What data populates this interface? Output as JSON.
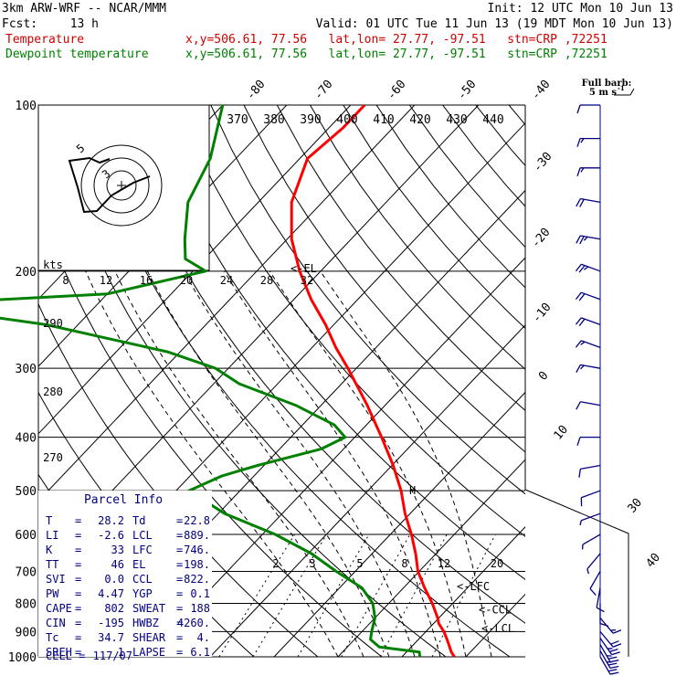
{
  "header": {
    "model": "3km ARW-WRF -- NCAR/MMM",
    "init": "Init: 12 UTC Mon 10 Jun 13",
    "fcst_label": "Fcst:",
    "fcst_value": "13 h",
    "valid": "Valid: 01 UTC Tue 11 Jun 13 (19 MDT Mon 10 Jun 13)",
    "rows": [
      {
        "name": "Temperature",
        "loc": "x,y=506.61, 77.56   lat,lon= 27.77, -97.51   stn=CRP ,72251",
        "color": "#d00000"
      },
      {
        "name": "Dewpoint temperature",
        "loc": "x,y=506.61, 77.56   lat,lon= 27.77, -97.51   stn=CRP ,72251",
        "color": "#008000"
      }
    ]
  },
  "barb_legend": {
    "line1": "Full barb:",
    "line2": "5 m s"
  },
  "chart_data": {
    "type": "line",
    "title": "Skew-T log-P sounding",
    "y_axis": {
      "label": "pressure (hPa)",
      "ticks": [
        100,
        200,
        300,
        400,
        500,
        600,
        700,
        800,
        900,
        1000
      ]
    },
    "temperature_ticks": [
      -80,
      -70,
      -60,
      -50,
      -40,
      -30,
      -20,
      -10,
      0,
      10,
      30,
      40
    ],
    "hodograph": {
      "speed_label": "kts",
      "speed_ticks": [
        8,
        12,
        16,
        20,
        24,
        28,
        32
      ],
      "ring_labels": [
        "5",
        "3"
      ]
    },
    "theta_e_labels": [
      "370",
      "380",
      "390",
      "400",
      "410",
      "420",
      "430",
      "440"
    ],
    "theta_labels": [
      "290",
      "280",
      "270"
    ],
    "mixing_ratio_labels": [
      "2",
      "3",
      "5",
      "8",
      "12",
      "20"
    ],
    "level_labels": [
      {
        "text": "<-EL",
        "p": 198
      },
      {
        "text": "H",
        "p": 500
      },
      {
        "text": "<-LFC",
        "p": 746
      },
      {
        "text": "<-CCL",
        "p": 822
      },
      {
        "text": "<-LCL",
        "p": 889
      }
    ],
    "series": [
      {
        "name": "Temperature",
        "color": "#ff0000",
        "points": [
          [
            1000,
            28.2
          ],
          [
            980,
            27.0
          ],
          [
            950,
            25.5
          ],
          [
            925,
            24.2
          ],
          [
            900,
            22.8
          ],
          [
            870,
            20.8
          ],
          [
            850,
            19.8
          ],
          [
            800,
            16.8
          ],
          [
            750,
            13.3
          ],
          [
            700,
            9.8
          ],
          [
            650,
            6.8
          ],
          [
            600,
            3.3
          ],
          [
            550,
            -0.8
          ],
          [
            500,
            -4.8
          ],
          [
            450,
            -9.8
          ],
          [
            400,
            -15.8
          ],
          [
            350,
            -22.8
          ],
          [
            300,
            -31.3
          ],
          [
            275,
            -36.3
          ],
          [
            250,
            -41.3
          ],
          [
            225,
            -47.3
          ],
          [
            200,
            -53.3
          ],
          [
            175,
            -59.3
          ],
          [
            150,
            -64.8
          ],
          [
            125,
            -68.8
          ],
          [
            110,
            -67.8
          ],
          [
            100,
            -67.8
          ]
        ]
      },
      {
        "name": "Dewpoint",
        "color": "#008000",
        "points": [
          [
            1000,
            22.8
          ],
          [
            980,
            22.0
          ],
          [
            960,
            15.0
          ],
          [
            930,
            12.5
          ],
          [
            900,
            11.5
          ],
          [
            850,
            10.0
          ],
          [
            800,
            7.5
          ],
          [
            750,
            3.5
          ],
          [
            700,
            -3.0
          ],
          [
            650,
            -9.5
          ],
          [
            600,
            -18.0
          ],
          [
            550,
            -29.0
          ],
          [
            500,
            -38.0
          ],
          [
            470,
            -35.0
          ],
          [
            450,
            -31.0
          ],
          [
            420,
            -23.5
          ],
          [
            400,
            -21.5
          ],
          [
            380,
            -25.0
          ],
          [
            350,
            -34.0
          ],
          [
            320,
            -46.0
          ],
          [
            300,
            -52.0
          ],
          [
            280,
            -62.0
          ],
          [
            250,
            -85.0
          ],
          [
            230,
            -110.0
          ],
          [
            220,
            -80.0
          ],
          [
            200,
            -68.0
          ],
          [
            190,
            -73.0
          ],
          [
            175,
            -76.0
          ],
          [
            150,
            -81.0
          ],
          [
            125,
            -84.0
          ],
          [
            100,
            -90.0
          ]
        ]
      }
    ],
    "wind_barbs": [
      {
        "p": 1000,
        "speed": 20,
        "dir": 150
      },
      {
        "p": 975,
        "speed": 25,
        "dir": 150
      },
      {
        "p": 950,
        "speed": 25,
        "dir": 150
      },
      {
        "p": 925,
        "speed": 25,
        "dir": 145
      },
      {
        "p": 900,
        "speed": 20,
        "dir": 140
      },
      {
        "p": 850,
        "speed": 15,
        "dir": 140
      },
      {
        "p": 800,
        "speed": 10,
        "dir": 180
      },
      {
        "p": 750,
        "speed": 10,
        "dir": 190
      },
      {
        "p": 700,
        "speed": 10,
        "dir": 210
      },
      {
        "p": 650,
        "speed": 5,
        "dir": 220
      },
      {
        "p": 600,
        "speed": 5,
        "dir": 240
      },
      {
        "p": 550,
        "speed": 5,
        "dir": 250
      },
      {
        "p": 500,
        "speed": 10,
        "dir": 250
      },
      {
        "p": 450,
        "speed": 10,
        "dir": 260
      },
      {
        "p": 400,
        "speed": 10,
        "dir": 270
      },
      {
        "p": 350,
        "speed": 10,
        "dir": 280
      },
      {
        "p": 300,
        "speed": 15,
        "dir": 280
      },
      {
        "p": 275,
        "speed": 15,
        "dir": 290
      },
      {
        "p": 250,
        "speed": 20,
        "dir": 290
      },
      {
        "p": 225,
        "speed": 20,
        "dir": 290
      },
      {
        "p": 200,
        "speed": 25,
        "dir": 290
      },
      {
        "p": 175,
        "speed": 25,
        "dir": 280
      },
      {
        "p": 150,
        "speed": 20,
        "dir": 280
      },
      {
        "p": 130,
        "speed": 15,
        "dir": 270
      },
      {
        "p": 115,
        "speed": 15,
        "dir": 270
      },
      {
        "p": 100,
        "speed": 10,
        "dir": 270
      }
    ],
    "parcel_info": {
      "title": "Parcel Info",
      "rows": [
        {
          "l1": "T",
          "v1": "28.2",
          "l2": "Td",
          "v2": "22.8"
        },
        {
          "l1": "LI",
          "v1": "-2.6",
          "l2": "LCL",
          "v2": "889."
        },
        {
          "l1": "K",
          "v1": "33",
          "l2": "LFC",
          "v2": "746."
        },
        {
          "l1": "TT",
          "v1": "46",
          "l2": "EL",
          "v2": "198."
        },
        {
          "l1": "SVI",
          "v1": "0.0",
          "l2": "CCL",
          "v2": "822."
        },
        {
          "l1": "PW",
          "v1": "4.47",
          "l2": "YGP",
          "v2": "0.1"
        },
        {
          "l1": "CAPE",
          "v1": "802",
          "l2": "SWEAT",
          "v2": "188"
        },
        {
          "l1": "CIN",
          "v1": "-195",
          "l2": "HWBZ",
          "v2": "4260."
        },
        {
          "l1": "Tc",
          "v1": "34.7",
          "l2": "SHEAR",
          "v2": "4."
        },
        {
          "l1": "SREH",
          "v1": "1",
          "l2": "LAPSE",
          "v2": "6.1"
        }
      ],
      "cell_label": "CELL =",
      "cell_value": "117/07"
    }
  }
}
